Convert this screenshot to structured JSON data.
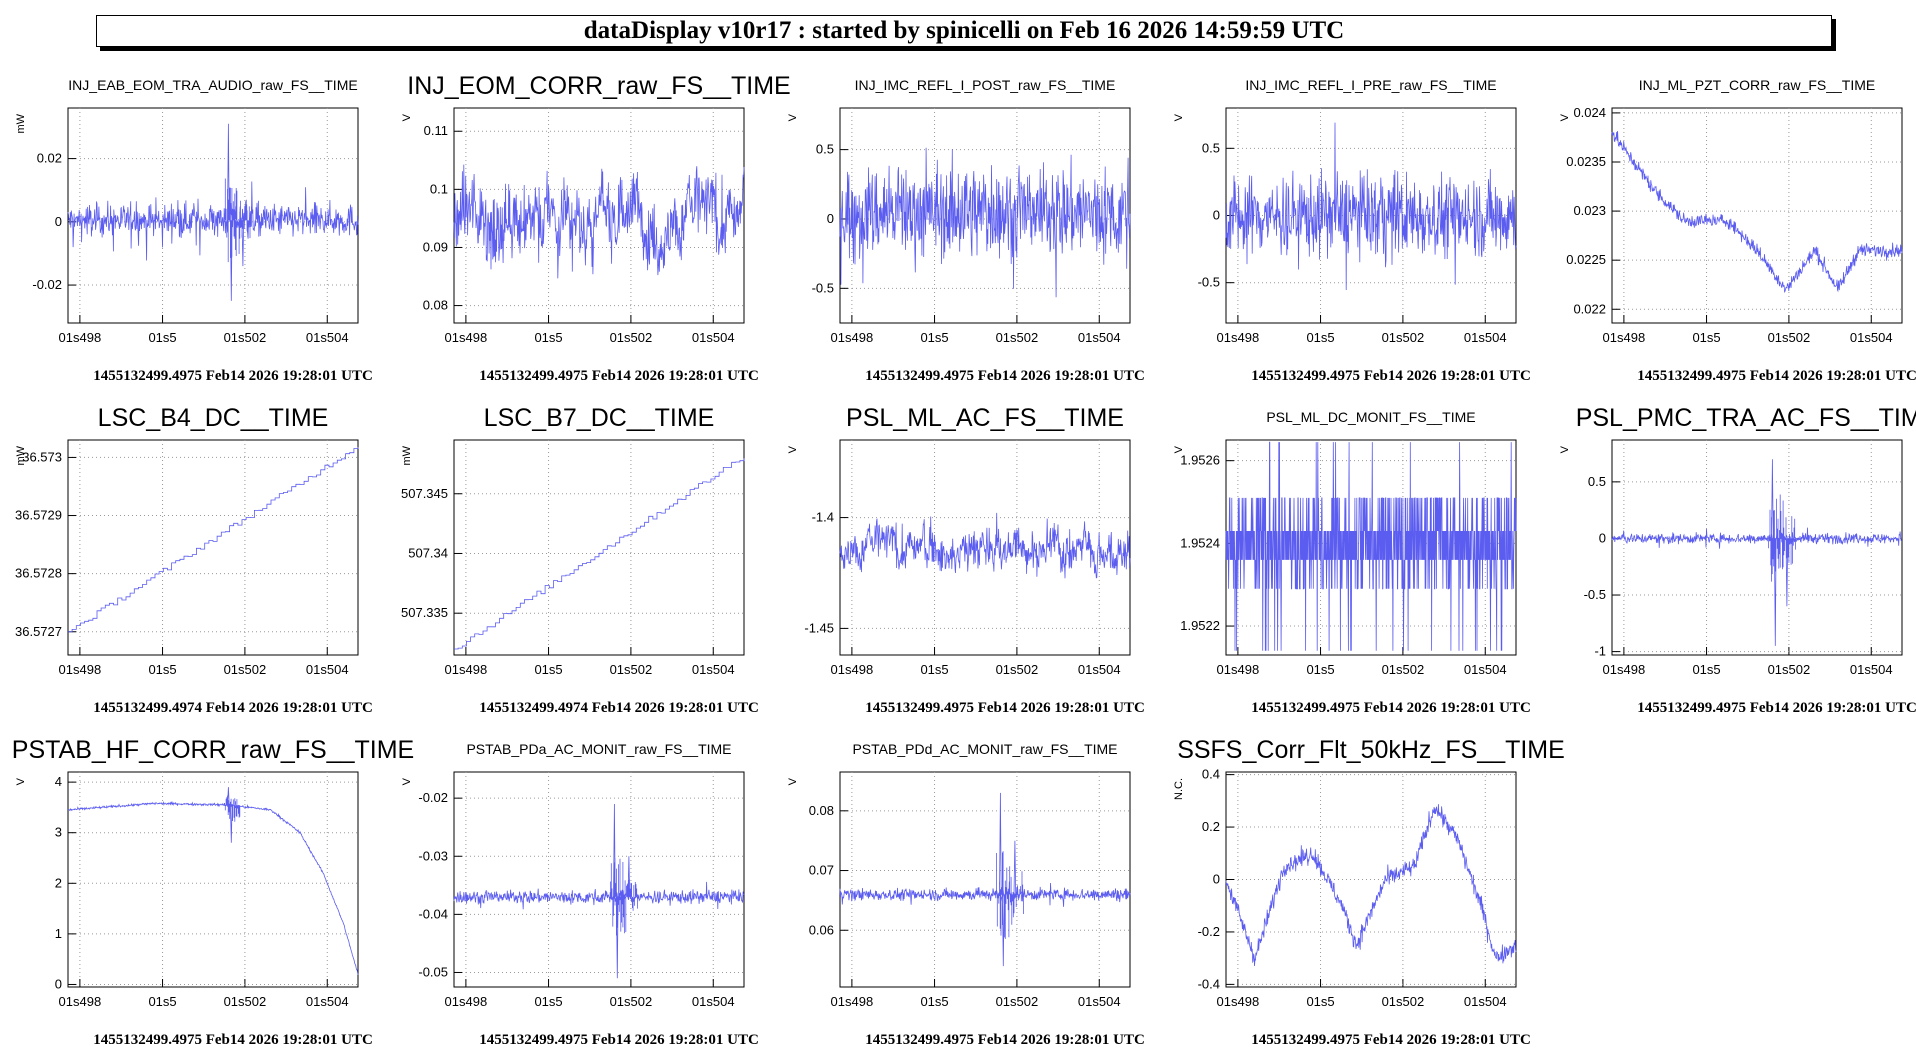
{
  "header": {
    "title": "dataDisplay v10r17 : started by spinicelli on Feb 16 2026 14:59:59 UTC"
  },
  "colors": {
    "trace": "#5b5cf0",
    "grid": "#9a9a9a",
    "axis": "#000000"
  },
  "chart_data": [
    {
      "type": "line",
      "title": "INJ_EAB_EOM_TRA_AUDIO_raw_FS__TIME",
      "title_size": "small",
      "ylabel": "mW",
      "ylim": [
        -0.032,
        0.036
      ],
      "yticks": [
        {
          "v": 0.02,
          "l": "0.02"
        },
        {
          "v": 0,
          "l": "0"
        },
        {
          "v": -0.02,
          "l": "-0.02"
        }
      ],
      "xticks": [
        "01s498",
        "01s5",
        "01s502",
        "01s504"
      ],
      "timestamp": "1455132499.4975 Feb14 2026 19:28:01 UTC",
      "shape": "noise",
      "base": 0.0005,
      "amp": 0.004,
      "spikes": [
        {
          "t": 0.55,
          "v": 0.031
        },
        {
          "t": 0.56,
          "v": -0.025
        },
        {
          "t": 0.6,
          "v": -0.014
        }
      ]
    },
    {
      "type": "line",
      "title": "INJ_EOM_CORR_raw_FS__TIME",
      "title_size": "large",
      "ylabel": "V",
      "ylim": [
        0.077,
        0.114
      ],
      "yticks": [
        {
          "v": 0.11,
          "l": "0.11"
        },
        {
          "v": 0.1,
          "l": "0.1"
        },
        {
          "v": 0.09,
          "l": "0.09"
        },
        {
          "v": 0.08,
          "l": "0.08"
        }
      ],
      "xticks": [
        "01s498",
        "01s5",
        "01s502",
        "01s504"
      ],
      "timestamp": "1455132499.4975 Feb14 2026 19:28:01 UTC",
      "shape": "wander",
      "base": 0.095,
      "amp": 0.008
    },
    {
      "type": "line",
      "title": "INJ_IMC_REFL_I_POST_raw_FS__TIME",
      "title_size": "small",
      "ylabel": "V",
      "ylim": [
        -0.75,
        0.8
      ],
      "yticks": [
        {
          "v": 0.5,
          "l": "0.5"
        },
        {
          "v": 0,
          "l": "0"
        },
        {
          "v": -0.5,
          "l": "-0.5"
        }
      ],
      "xticks": [
        "01s498",
        "01s5",
        "01s502",
        "01s504"
      ],
      "timestamp": "1455132499.4975 Feb14 2026 19:28:01 UTC",
      "shape": "noise",
      "base": 0.05,
      "amp": 0.26
    },
    {
      "type": "line",
      "title": "INJ_IMC_REFL_I_PRE_raw_FS__TIME",
      "title_size": "small",
      "ylabel": "V",
      "ylim": [
        -0.8,
        0.8
      ],
      "yticks": [
        {
          "v": 0.5,
          "l": "0.5"
        },
        {
          "v": 0,
          "l": "0"
        },
        {
          "v": -0.5,
          "l": "-0.5"
        }
      ],
      "xticks": [
        "01s498",
        "01s5",
        "01s502",
        "01s504"
      ],
      "timestamp": "1455132499.4975 Feb14 2026 19:28:01 UTC",
      "shape": "noise",
      "base": 0.0,
      "amp": 0.24
    },
    {
      "type": "line",
      "title": "INJ_ML_PZT_CORR_raw_FS__TIME",
      "title_size": "small",
      "ylabel": "V",
      "ylim": [
        0.02186,
        0.02405
      ],
      "yticks": [
        {
          "v": 0.024,
          "l": "0.024"
        },
        {
          "v": 0.0235,
          "l": "0.0235"
        },
        {
          "v": 0.023,
          "l": "0.023"
        },
        {
          "v": 0.0225,
          "l": "0.0225"
        },
        {
          "v": 0.022,
          "l": "0.022"
        }
      ],
      "xticks": [
        "01s498",
        "01s5",
        "01s502",
        "01s504"
      ],
      "timestamp": "1455132499.4975 Feb14 2026 19:28:01 UTC",
      "shape": "piecewise",
      "amp": 6e-05,
      "points": [
        [
          0,
          0.0238
        ],
        [
          0.15,
          0.0232
        ],
        [
          0.25,
          0.0229
        ],
        [
          0.4,
          0.0229
        ],
        [
          0.5,
          0.0226
        ],
        [
          0.6,
          0.0222
        ],
        [
          0.7,
          0.0226
        ],
        [
          0.78,
          0.0222
        ],
        [
          0.85,
          0.0226
        ],
        [
          1,
          0.0226
        ]
      ]
    },
    {
      "type": "line",
      "title": "LSC_B4_DC__TIME",
      "title_size": "large",
      "ylabel": "mW",
      "ylim": [
        36.57266,
        36.57303
      ],
      "yticks": [
        {
          "v": 36.573,
          "l": "36.573"
        },
        {
          "v": 36.5729,
          "l": "36.5729"
        },
        {
          "v": 36.5728,
          "l": "36.5728"
        },
        {
          "v": 36.5727,
          "l": "36.5727"
        }
      ],
      "xticks": [
        "01s498",
        "01s5",
        "01s502",
        "01s504"
      ],
      "timestamp": "1455132499.4974 Feb14 2026 19:28:01 UTC",
      "shape": "stairs",
      "points": [
        [
          0,
          36.5727
        ],
        [
          1,
          36.57302
        ]
      ]
    },
    {
      "type": "line",
      "title": "LSC_B7_DC__TIME",
      "title_size": "large",
      "ylabel": "mW",
      "ylim": [
        507.3315,
        507.3495
      ],
      "yticks": [
        {
          "v": 507.345,
          "l": "507.345"
        },
        {
          "v": 507.34,
          "l": "507.34"
        },
        {
          "v": 507.335,
          "l": "507.335"
        }
      ],
      "xticks": [
        "01s498",
        "01s5",
        "01s502",
        "01s504"
      ],
      "timestamp": "1455132499.4974 Feb14 2026 19:28:01 UTC",
      "shape": "stairs",
      "points": [
        [
          0,
          507.332
        ],
        [
          1,
          507.3482
        ]
      ]
    },
    {
      "type": "line",
      "title": "PSL_ML_AC_FS__TIME",
      "title_size": "large",
      "ylabel": "V",
      "ylim": [
        -1.462,
        -1.365
      ],
      "yticks": [
        {
          "v": -1.4,
          "l": "-1.4"
        },
        {
          "v": -1.45,
          "l": "-1.45"
        }
      ],
      "xticks": [
        "01s498",
        "01s5",
        "01s502",
        "01s504"
      ],
      "timestamp": "1455132499.4975 Feb14 2026 19:28:01 UTC",
      "shape": "wander",
      "base": -1.414,
      "amp": 0.012
    },
    {
      "type": "line",
      "title": "PSL_ML_DC_MONIT_FS__TIME",
      "title_size": "small",
      "ylabel": "V",
      "ylim": [
        1.95213,
        1.95265
      ],
      "yticks": [
        {
          "v": 1.9526,
          "l": "1.9526"
        },
        {
          "v": 1.9524,
          "l": "1.9524"
        },
        {
          "v": 1.9522,
          "l": "1.9522"
        }
      ],
      "xticks": [
        "01s498",
        "01s5",
        "01s502",
        "01s504"
      ],
      "timestamp": "1455132499.4975 Feb14 2026 19:28:01 UTC",
      "shape": "digital",
      "levels": [
        1.95251,
        1.95243,
        1.95236,
        1.95229
      ]
    },
    {
      "type": "line",
      "title": "PSL_PMC_TRA_AC_FS__TIME",
      "title_size": "large",
      "ylabel": "V",
      "ylim": [
        -1.03,
        0.87
      ],
      "yticks": [
        {
          "v": 0.5,
          "l": "0.5"
        },
        {
          "v": 0,
          "l": "0"
        },
        {
          "v": -0.5,
          "l": "-0.5"
        },
        {
          "v": -1,
          "l": "-1"
        }
      ],
      "xticks": [
        "01s498",
        "01s5",
        "01s502",
        "01s504"
      ],
      "timestamp": "1455132499.4975 Feb14 2026 19:28:01 UTC",
      "shape": "noise",
      "base": 0.0,
      "amp": 0.035,
      "spikes": [
        {
          "t": 0.55,
          "v": 0.7
        },
        {
          "t": 0.56,
          "v": -0.95
        },
        {
          "t": 0.6,
          "v": -0.6
        }
      ]
    },
    {
      "type": "line",
      "title": "PSTAB_HF_CORR_raw_FS__TIME",
      "title_size": "large",
      "ylabel": "V",
      "ylim": [
        -0.05,
        4.2
      ],
      "yticks": [
        {
          "v": 4,
          "l": "4"
        },
        {
          "v": 3,
          "l": "3"
        },
        {
          "v": 2,
          "l": "2"
        },
        {
          "v": 1,
          "l": "1"
        },
        {
          "v": 0,
          "l": "0"
        }
      ],
      "xticks": [
        "01s498",
        "01s5",
        "01s502",
        "01s504"
      ],
      "timestamp": "1455132499.4975 Feb14 2026 19:28:01 UTC",
      "shape": "piecewise",
      "amp": 0.02,
      "points": [
        [
          0,
          3.45
        ],
        [
          0.3,
          3.58
        ],
        [
          0.55,
          3.55
        ],
        [
          0.7,
          3.45
        ],
        [
          0.8,
          3.0
        ],
        [
          0.88,
          2.2
        ],
        [
          0.95,
          1.2
        ],
        [
          1,
          0.2
        ]
      ],
      "spikes": [
        {
          "t": 0.55,
          "v": 3.9
        },
        {
          "t": 0.56,
          "v": 2.8
        }
      ]
    },
    {
      "type": "line",
      "title": "PSTAB_PDa_AC_MONIT_raw_FS__TIME",
      "title_size": "small",
      "ylabel": "V",
      "ylim": [
        -0.0525,
        -0.0155
      ],
      "yticks": [
        {
          "v": -0.02,
          "l": "-0.02"
        },
        {
          "v": -0.03,
          "l": "-0.03"
        },
        {
          "v": -0.04,
          "l": "-0.04"
        },
        {
          "v": -0.05,
          "l": "-0.05"
        }
      ],
      "xticks": [
        "01s498",
        "01s5",
        "01s502",
        "01s504"
      ],
      "timestamp": "1455132499.4975 Feb14 2026 19:28:01 UTC",
      "shape": "noise",
      "base": -0.037,
      "amp": 0.0009,
      "spikes": [
        {
          "t": 0.55,
          "v": -0.021
        },
        {
          "t": 0.56,
          "v": -0.051
        },
        {
          "t": 0.6,
          "v": -0.03
        }
      ]
    },
    {
      "type": "line",
      "title": "PSTAB_PDd_AC_MONIT_raw_FS__TIME",
      "title_size": "small",
      "ylabel": "V",
      "ylim": [
        0.0505,
        0.0865
      ],
      "yticks": [
        {
          "v": 0.08,
          "l": "0.08"
        },
        {
          "v": 0.07,
          "l": "0.07"
        },
        {
          "v": 0.06,
          "l": "0.06"
        }
      ],
      "xticks": [
        "01s498",
        "01s5",
        "01s502",
        "01s504"
      ],
      "timestamp": "1455132499.4975 Feb14 2026 19:28:01 UTC",
      "shape": "noise",
      "base": 0.066,
      "amp": 0.0008,
      "spikes": [
        {
          "t": 0.55,
          "v": 0.083
        },
        {
          "t": 0.56,
          "v": 0.054
        },
        {
          "t": 0.6,
          "v": 0.075
        }
      ]
    },
    {
      "type": "line",
      "title": "SSFS_Corr_Flt_50kHz_FS__TIME",
      "title_size": "large",
      "ylabel": "N.C.",
      "ylim": [
        -0.41,
        0.41
      ],
      "yticks": [
        {
          "v": 0.4,
          "l": "0.4"
        },
        {
          "v": 0.2,
          "l": "0.2"
        },
        {
          "v": 0,
          "l": "0"
        },
        {
          "v": -0.2,
          "l": "-0.2"
        },
        {
          "v": -0.4,
          "l": "-0.4"
        }
      ],
      "xticks": [
        "01s498",
        "01s5",
        "01s502",
        "01s504"
      ],
      "timestamp": "1455132499.4975 Feb14 2026 19:28:01 UTC",
      "shape": "piecewise",
      "amp": 0.03,
      "points": [
        [
          0,
          0.0
        ],
        [
          0.05,
          -0.15
        ],
        [
          0.1,
          -0.3
        ],
        [
          0.2,
          0.05
        ],
        [
          0.3,
          0.1
        ],
        [
          0.4,
          -0.1
        ],
        [
          0.45,
          -0.25
        ],
        [
          0.55,
          0.0
        ],
        [
          0.65,
          0.05
        ],
        [
          0.72,
          0.28
        ],
        [
          0.8,
          0.15
        ],
        [
          0.88,
          -0.1
        ],
        [
          0.93,
          -0.3
        ],
        [
          1,
          -0.25
        ]
      ]
    }
  ]
}
